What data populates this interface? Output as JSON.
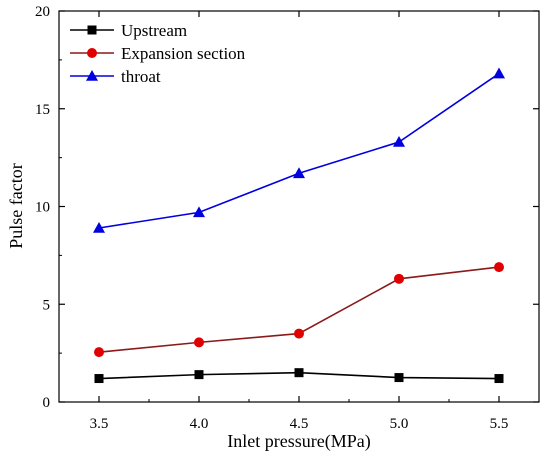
{
  "chart_data": {
    "type": "line",
    "title": "",
    "xlabel": "Inlet pressure(MPa)",
    "ylabel": "Pulse factor",
    "x": [
      3.5,
      4.0,
      4.5,
      5.0,
      5.5
    ],
    "x_tick_labels": [
      "3.5",
      "4.0",
      "4.5",
      "5.0",
      "5.5"
    ],
    "y_ticks": [
      0,
      5,
      10,
      15,
      20
    ],
    "y_tick_labels": [
      "0",
      "5",
      "10",
      "15",
      "20"
    ],
    "xlim": [
      3.3,
      5.7
    ],
    "ylim": [
      0,
      20
    ],
    "grid": false,
    "legend_position": "top-left",
    "series": [
      {
        "name": "Upstream",
        "values": [
          1.2,
          1.4,
          1.5,
          1.25,
          1.2
        ],
        "color": "#000000",
        "line_color": "#000000",
        "marker": "square"
      },
      {
        "name": "Expansion section",
        "values": [
          2.55,
          3.05,
          3.5,
          6.3,
          6.9
        ],
        "color": "#e00000",
        "line_color": "#8b1a1a",
        "marker": "circle"
      },
      {
        "name": "throat",
        "values": [
          8.9,
          9.7,
          11.7,
          13.3,
          16.8
        ],
        "color": "#0000e0",
        "line_color": "#0000e0",
        "marker": "triangle"
      }
    ]
  }
}
